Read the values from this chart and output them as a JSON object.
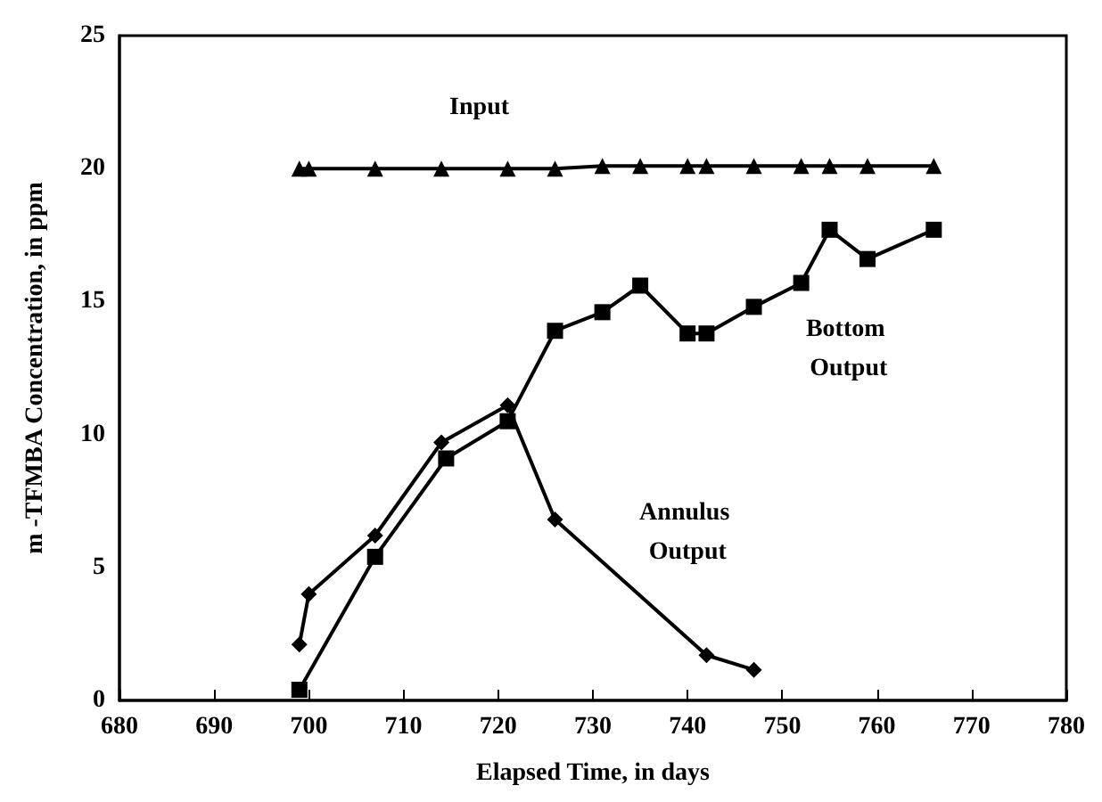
{
  "chart_data": {
    "type": "line",
    "xlabel": "Elapsed Time, in days",
    "ylabel": "m -TFMBA Concentration, in ppm",
    "xlim": [
      680,
      780
    ],
    "xticks": [
      680,
      690,
      700,
      710,
      720,
      730,
      740,
      750,
      760,
      770,
      780
    ],
    "ylim": [
      0,
      25
    ],
    "yticks": [
      0,
      5,
      10,
      15,
      20,
      25
    ],
    "grid": false,
    "line_style": "solid",
    "series": [
      {
        "name": "Input",
        "color": "#000000",
        "marker": "triangle",
        "x": [
          699,
          700,
          707,
          714,
          721,
          726,
          731,
          735,
          740,
          742,
          747,
          752,
          755,
          759,
          766
        ],
        "values": [
          20,
          20,
          20,
          20,
          20,
          20,
          20.1,
          20.1,
          20.1,
          20.1,
          20.1,
          20.1,
          20.1,
          20.1,
          20.1
        ]
      },
      {
        "name": "Bottom Output",
        "color": "#000000",
        "marker": "square",
        "x": [
          699,
          707,
          714.5,
          721,
          726,
          731,
          735,
          740,
          742,
          747,
          752,
          755,
          759,
          766
        ],
        "values": [
          0.4,
          5.4,
          9.1,
          10.5,
          13.9,
          14.6,
          15.6,
          13.8,
          13.8,
          14.8,
          15.7,
          17.7,
          16.6,
          17.7
        ]
      },
      {
        "name": "Annulus Output",
        "color": "#000000",
        "marker": "diamond",
        "x": [
          699,
          700,
          707,
          714,
          721,
          726,
          742,
          747
        ],
        "values": [
          2.1,
          4.0,
          6.2,
          9.7,
          11.1,
          6.8,
          1.7,
          1.15
        ]
      }
    ]
  }
}
